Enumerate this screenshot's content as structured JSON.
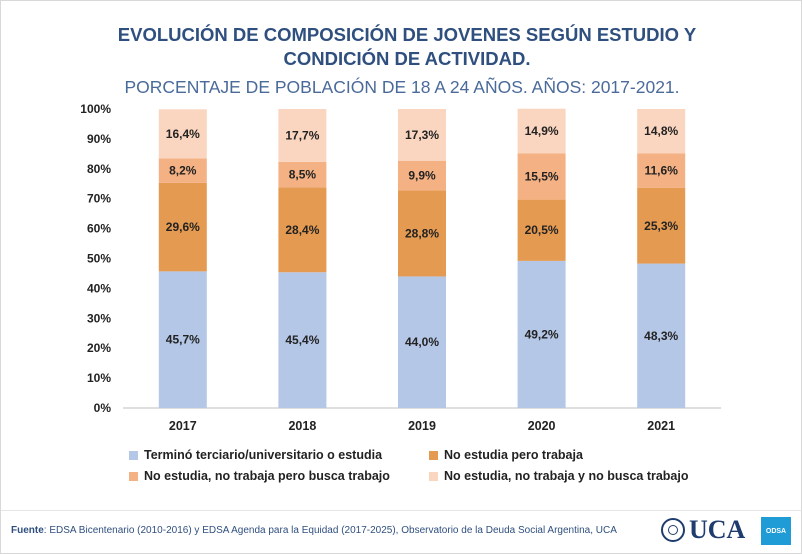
{
  "title": "EVOLUCIÓN DE COMPOSICIÓN DE JOVENES SEGÚN ESTUDIO Y CONDICIÓN DE ACTIVIDAD.",
  "subtitle": "PORCENTAJE DE POBLACIÓN DE 18 A 24 AÑOS. AÑOS: 2017-2021.",
  "footer": {
    "source_label": "Fuente",
    "source_text": ": EDSA Bicentenario (2010-2016) y EDSA Agenda para la Equidad (2017-2025), Observatorio de la Deuda Social Argentina, UCA",
    "logo_text": "UCA",
    "badge_text": "ODSA"
  },
  "legend": [
    {
      "label": "Terminó terciario/universitario o estudia",
      "color": "#b4c7e7"
    },
    {
      "label": "No estudia pero trabaja",
      "color": "#e59a52"
    },
    {
      "label": "No estudia, no trabaja pero busca trabajo",
      "color": "#f4b183"
    },
    {
      "label": "No estudia, no trabaja y no busca trabajo",
      "color": "#fad5c0"
    }
  ],
  "chart_data": {
    "type": "bar",
    "stacked": true,
    "categories": [
      "2017",
      "2018",
      "2019",
      "2020",
      "2021"
    ],
    "series": [
      {
        "name": "Terminó terciario/universitario o estudia",
        "color": "#b4c7e7",
        "values": [
          45.7,
          45.4,
          44.0,
          49.2,
          48.3
        ],
        "labels": [
          "45,7%",
          "45,4%",
          "44,0%",
          "49,2%",
          "48,3%"
        ]
      },
      {
        "name": "No estudia pero trabaja",
        "color": "#e59a52",
        "values": [
          29.6,
          28.4,
          28.8,
          20.5,
          25.3
        ],
        "labels": [
          "29,6%",
          "28,4%",
          "28,8%",
          "20,5%",
          "25,3%"
        ]
      },
      {
        "name": "No estudia, no trabaja pero busca trabajo",
        "color": "#f4b183",
        "values": [
          8.2,
          8.5,
          9.9,
          15.5,
          11.6
        ],
        "labels": [
          "8,2%",
          "8,5%",
          "9,9%",
          "15,5%",
          "11,6%"
        ]
      },
      {
        "name": "No estudia, no trabaja y no busca trabajo",
        "color": "#fad5c0",
        "values": [
          16.4,
          17.7,
          17.3,
          14.9,
          14.8
        ],
        "labels": [
          "16,4%",
          "17,7%",
          "17,3%",
          "14,9%",
          "14,8%"
        ]
      }
    ],
    "ylim": [
      0,
      100
    ],
    "yticks": [
      "0%",
      "10%",
      "20%",
      "30%",
      "40%",
      "50%",
      "60%",
      "70%",
      "80%",
      "90%",
      "100%"
    ],
    "grid": false,
    "legend_position": "bottom"
  }
}
